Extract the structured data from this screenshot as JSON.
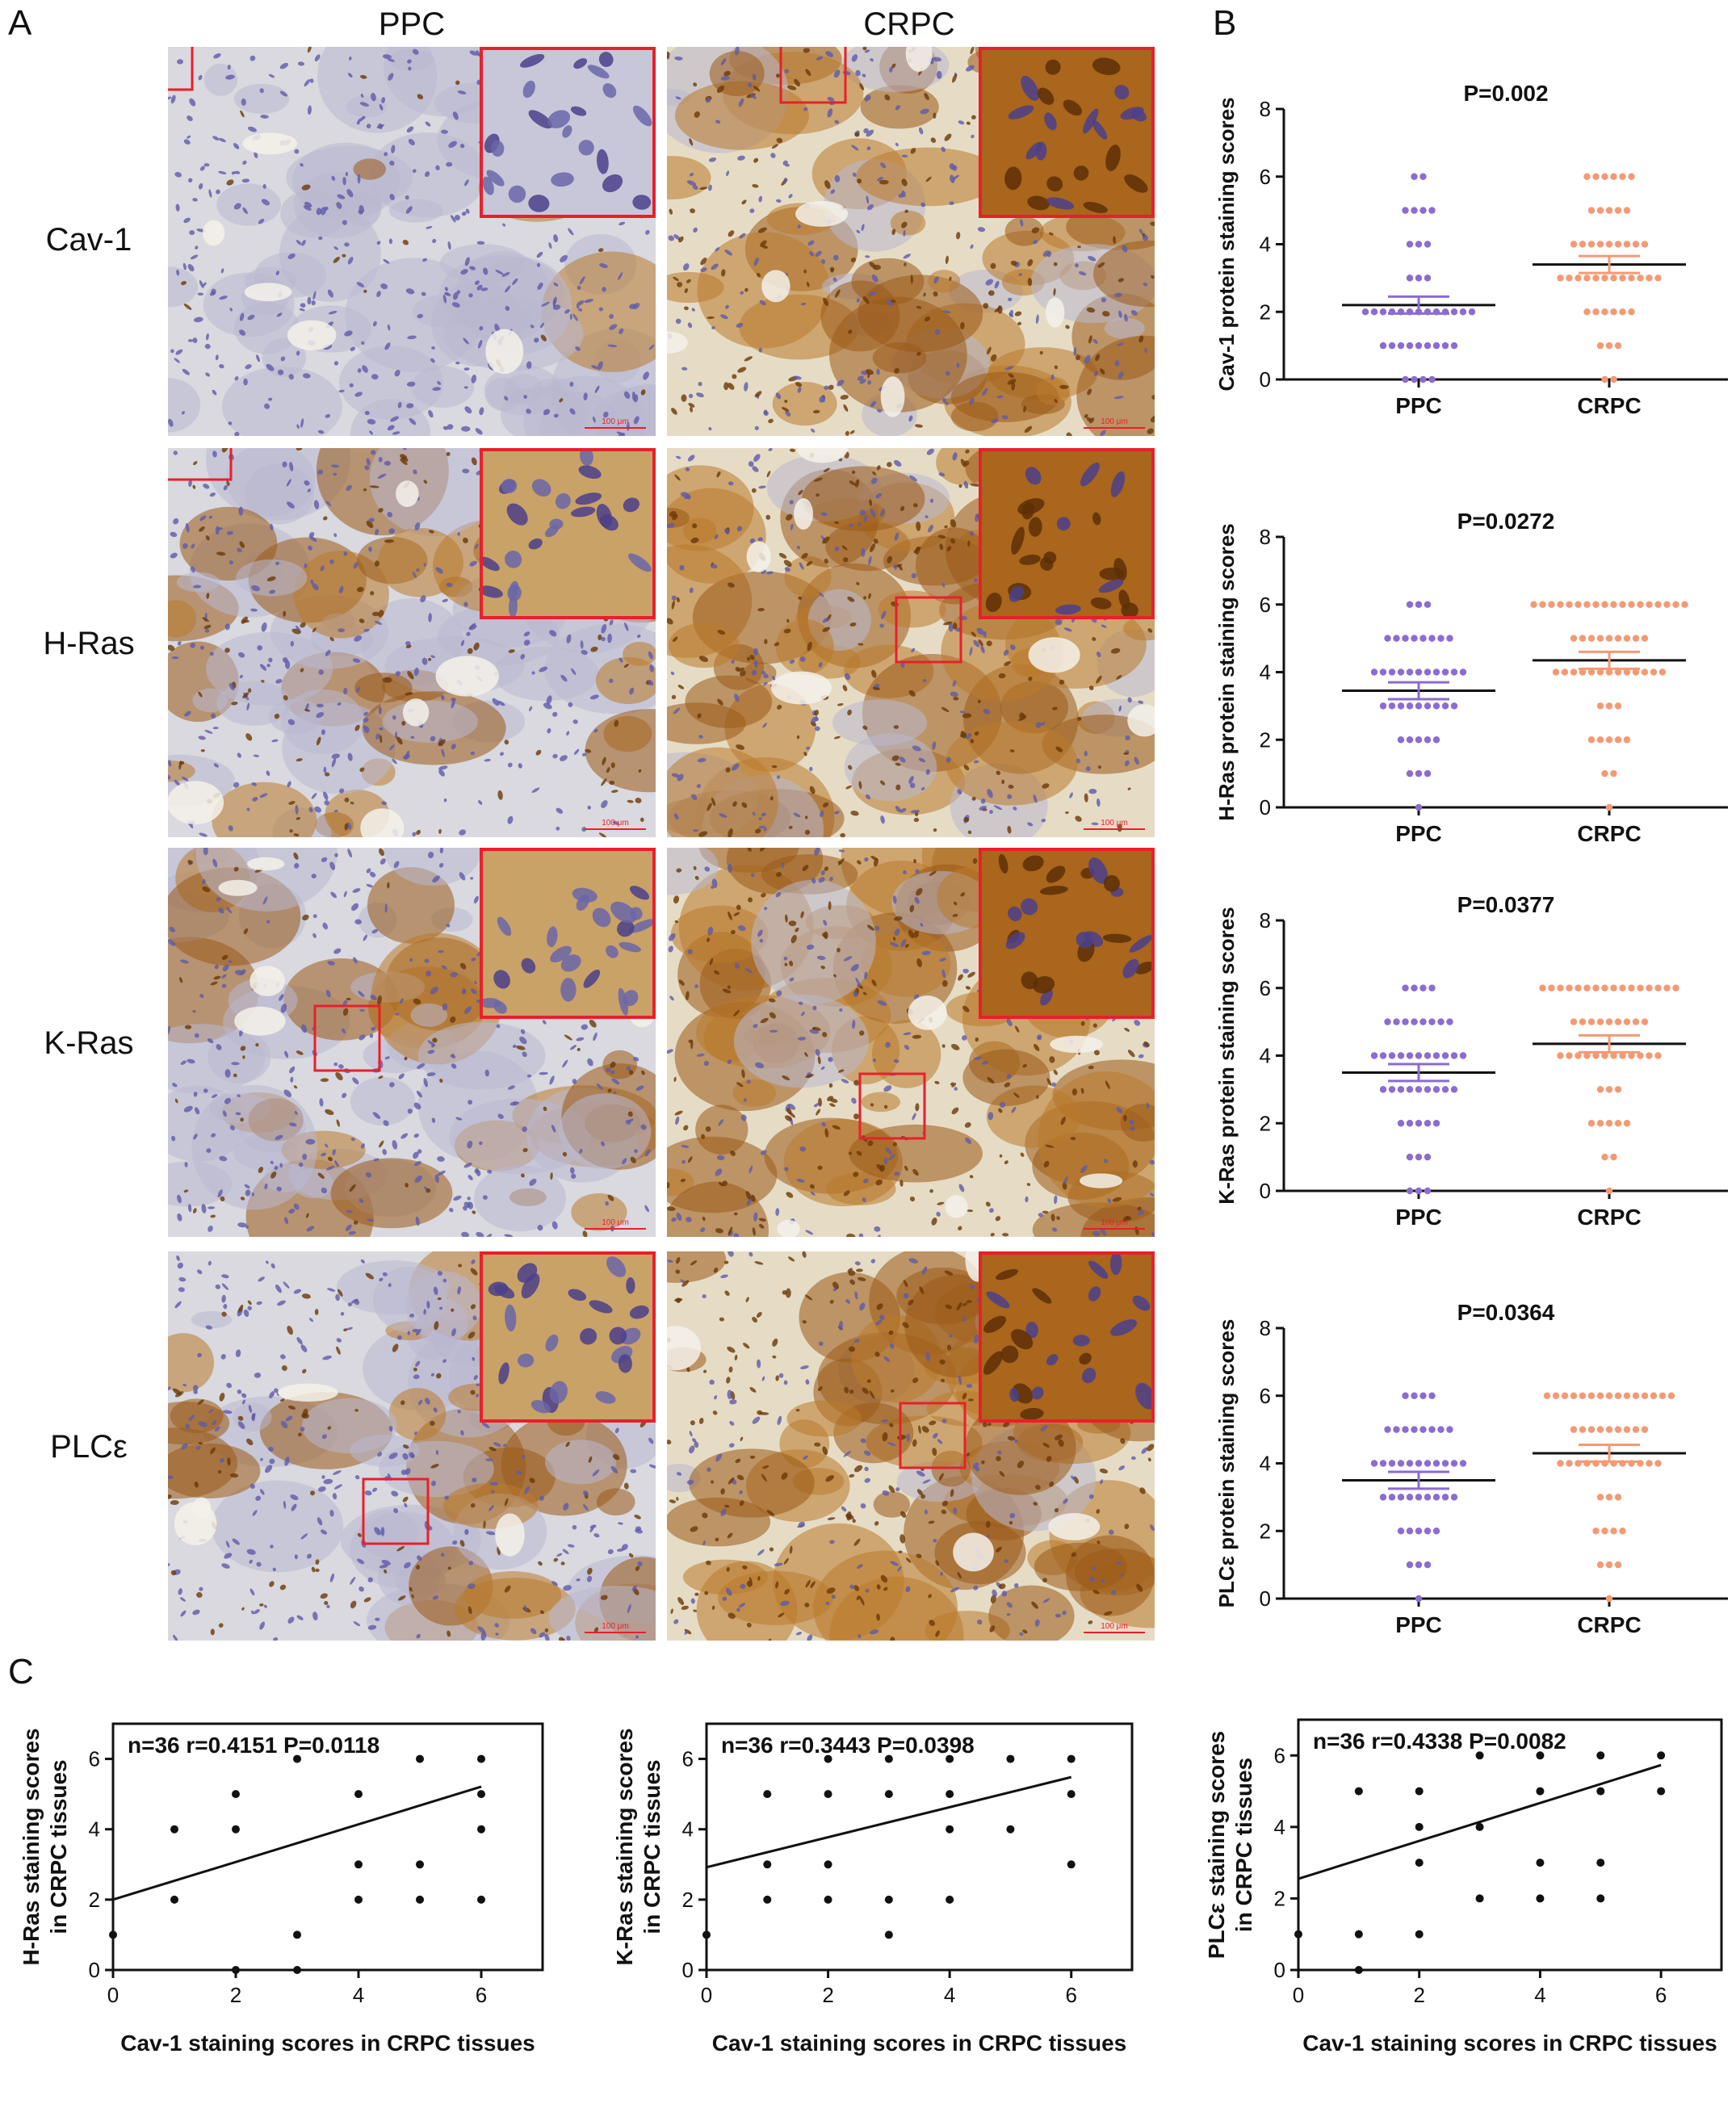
{
  "panel_labels": {
    "a": "A",
    "b": "B",
    "c": "C"
  },
  "columns": {
    "ppc": "PPC",
    "crpc": "CRPC"
  },
  "rows": [
    "Cav-1",
    "H-Ras",
    "K-Ras",
    "PLCε"
  ],
  "scale_bar": "100 μm",
  "colors": {
    "ppc": "#8c6bd2",
    "crpc": "#f39a74",
    "box": "#e8202a",
    "brown": "#8a4e12",
    "hema": "#5f5aa8"
  },
  "chart_data": [
    {
      "type": "scatter",
      "id": "b-cav1",
      "title": "P=0.002",
      "ylabel": "Cav-1 protein staining scores",
      "categories": [
        "PPC",
        "CRPC"
      ],
      "ylim": [
        0,
        8
      ],
      "yticks": [
        0,
        2,
        4,
        6,
        8
      ],
      "series": [
        {
          "name": "PPC",
          "mean": 2.2,
          "sem": 0.25,
          "values": [
            0,
            0,
            0,
            0,
            1,
            1,
            1,
            1,
            1,
            1,
            1,
            1,
            1,
            2,
            2,
            2,
            2,
            2,
            2,
            2,
            2,
            2,
            2,
            2,
            2,
            2,
            3,
            3,
            3,
            4,
            4,
            4,
            5,
            5,
            5,
            5,
            6,
            6
          ]
        },
        {
          "name": "CRPC",
          "mean": 3.4,
          "sem": 0.25,
          "values": [
            0,
            0,
            1,
            1,
            1,
            2,
            2,
            2,
            2,
            2,
            2,
            3,
            3,
            3,
            3,
            3,
            3,
            3,
            3,
            3,
            3,
            3,
            3,
            4,
            4,
            4,
            4,
            4,
            4,
            4,
            4,
            4,
            5,
            5,
            5,
            5,
            5,
            6,
            6,
            6,
            6,
            6,
            6
          ]
        }
      ]
    },
    {
      "type": "scatter",
      "id": "b-hras",
      "title": "P=0.0272",
      "ylabel": "H-Ras protein staining scores",
      "categories": [
        "PPC",
        "CRPC"
      ],
      "ylim": [
        0,
        8
      ],
      "yticks": [
        0,
        2,
        4,
        6,
        8
      ],
      "series": [
        {
          "name": "PPC",
          "mean": 3.45,
          "sem": 0.25,
          "values": [
            0,
            1,
            1,
            1,
            2,
            2,
            2,
            2,
            2,
            3,
            3,
            3,
            3,
            3,
            3,
            3,
            3,
            3,
            4,
            4,
            4,
            4,
            4,
            4,
            4,
            4,
            4,
            4,
            4,
            5,
            5,
            5,
            5,
            5,
            5,
            5,
            5,
            6,
            6,
            6
          ]
        },
        {
          "name": "CRPC",
          "mean": 4.35,
          "sem": 0.25,
          "values": [
            0,
            1,
            1,
            2,
            2,
            2,
            2,
            2,
            3,
            3,
            3,
            4,
            4,
            4,
            4,
            4,
            4,
            4,
            4,
            4,
            4,
            4,
            4,
            4,
            5,
            5,
            5,
            5,
            5,
            5,
            5,
            5,
            5,
            6,
            6,
            6,
            6,
            6,
            6,
            6,
            6,
            6,
            6,
            6,
            6,
            6,
            6,
            6,
            6,
            6,
            6
          ]
        }
      ]
    },
    {
      "type": "scatter",
      "id": "b-kras",
      "title": "P=0.0377",
      "ylabel": "K-Ras protein staining scores",
      "categories": [
        "PPC",
        "CRPC"
      ],
      "ylim": [
        0,
        8
      ],
      "yticks": [
        0,
        2,
        4,
        6,
        8
      ],
      "series": [
        {
          "name": "PPC",
          "mean": 3.5,
          "sem": 0.25,
          "values": [
            0,
            0,
            0,
            1,
            1,
            1,
            2,
            2,
            2,
            2,
            2,
            3,
            3,
            3,
            3,
            3,
            3,
            3,
            3,
            3,
            4,
            4,
            4,
            4,
            4,
            4,
            4,
            4,
            4,
            4,
            4,
            5,
            5,
            5,
            5,
            5,
            5,
            5,
            5,
            6,
            6,
            6,
            6
          ]
        },
        {
          "name": "CRPC",
          "mean": 4.35,
          "sem": 0.25,
          "values": [
            0,
            1,
            1,
            2,
            2,
            2,
            2,
            2,
            3,
            3,
            3,
            4,
            4,
            4,
            4,
            4,
            4,
            4,
            4,
            4,
            4,
            4,
            4,
            5,
            5,
            5,
            5,
            5,
            5,
            5,
            5,
            5,
            6,
            6,
            6,
            6,
            6,
            6,
            6,
            6,
            6,
            6,
            6,
            6,
            6,
            6,
            6,
            6
          ]
        }
      ]
    },
    {
      "type": "scatter",
      "id": "b-plce",
      "title": "P=0.0364",
      "ylabel": "PLCε protein staining scores",
      "categories": [
        "PPC",
        "CRPC"
      ],
      "ylim": [
        0,
        8
      ],
      "yticks": [
        0,
        2,
        4,
        6,
        8
      ],
      "series": [
        {
          "name": "PPC",
          "mean": 3.5,
          "sem": 0.25,
          "values": [
            0,
            1,
            1,
            1,
            2,
            2,
            2,
            2,
            2,
            3,
            3,
            3,
            3,
            3,
            3,
            3,
            3,
            3,
            4,
            4,
            4,
            4,
            4,
            4,
            4,
            4,
            4,
            4,
            4,
            5,
            5,
            5,
            5,
            5,
            5,
            5,
            5,
            6,
            6,
            6,
            6
          ]
        },
        {
          "name": "CRPC",
          "mean": 4.3,
          "sem": 0.25,
          "values": [
            0,
            1,
            1,
            1,
            2,
            2,
            2,
            2,
            3,
            3,
            3,
            4,
            4,
            4,
            4,
            4,
            4,
            4,
            4,
            4,
            4,
            4,
            4,
            5,
            5,
            5,
            5,
            5,
            5,
            5,
            5,
            5,
            6,
            6,
            6,
            6,
            6,
            6,
            6,
            6,
            6,
            6,
            6,
            6,
            6,
            6,
            6
          ]
        }
      ]
    },
    {
      "type": "scatter",
      "id": "c-hras",
      "annotation": "n=36  r=0.4151  P=0.0118",
      "xlabel": "Cav-1 staining scores in CRPC tissues",
      "ylabel": [
        "H-Ras  staining scores",
        "in CRPC tissues"
      ],
      "xlim": [
        0,
        7
      ],
      "ylim": [
        0,
        7
      ],
      "xticks": [
        0,
        2,
        4,
        6
      ],
      "yticks": [
        0,
        2,
        4,
        6
      ],
      "points": [
        [
          0,
          1
        ],
        [
          1,
          4
        ],
        [
          1,
          2
        ],
        [
          2,
          5
        ],
        [
          2,
          4
        ],
        [
          2,
          0
        ],
        [
          3,
          6
        ],
        [
          3,
          1
        ],
        [
          3,
          0
        ],
        [
          4,
          5
        ],
        [
          4,
          3
        ],
        [
          4,
          2
        ],
        [
          5,
          6
        ],
        [
          5,
          3
        ],
        [
          5,
          2
        ],
        [
          6,
          6
        ],
        [
          6,
          5
        ],
        [
          6,
          4
        ],
        [
          6,
          2
        ]
      ],
      "fit": {
        "intercept": 2.0,
        "slope": 0.535,
        "x_end": 6
      }
    },
    {
      "type": "scatter",
      "id": "c-kras",
      "annotation": "n=36  r=0.3443  P=0.0398",
      "xlabel": "Cav-1 staining scores in CRPC tissues",
      "ylabel": [
        "K-Ras  staining scores",
        "in CRPC tissues"
      ],
      "xlim": [
        0,
        7
      ],
      "ylim": [
        0,
        7
      ],
      "xticks": [
        0,
        2,
        4,
        6
      ],
      "yticks": [
        0,
        2,
        4,
        6
      ],
      "points": [
        [
          0,
          1
        ],
        [
          1,
          5
        ],
        [
          1,
          3
        ],
        [
          1,
          2
        ],
        [
          2,
          6
        ],
        [
          2,
          5
        ],
        [
          2,
          3
        ],
        [
          2,
          2
        ],
        [
          3,
          6
        ],
        [
          3,
          5
        ],
        [
          3,
          2
        ],
        [
          3,
          1
        ],
        [
          4,
          6
        ],
        [
          4,
          5
        ],
        [
          4,
          4
        ],
        [
          4,
          2
        ],
        [
          5,
          6
        ],
        [
          5,
          4
        ],
        [
          6,
          6
        ],
        [
          6,
          5
        ],
        [
          6,
          3
        ]
      ],
      "fit": {
        "intercept": 2.92,
        "slope": 0.427,
        "x_end": 6
      }
    },
    {
      "type": "scatter",
      "id": "c-plce",
      "annotation": "n=36  r=0.4338  P=0.0082",
      "xlabel": "Cav-1 staining scores in CRPC tissues",
      "ylabel": [
        "PLCε  staining scores",
        "in CRPC tissues"
      ],
      "xlim": [
        0,
        7
      ],
      "ylim": [
        0,
        7
      ],
      "xticks": [
        0,
        2,
        4,
        6
      ],
      "yticks": [
        0,
        2,
        4,
        6
      ],
      "points": [
        [
          0,
          1
        ],
        [
          1,
          5
        ],
        [
          1,
          1
        ],
        [
          1,
          0
        ],
        [
          2,
          5
        ],
        [
          2,
          4
        ],
        [
          2,
          3
        ],
        [
          2,
          1
        ],
        [
          3,
          6
        ],
        [
          3,
          4
        ],
        [
          3,
          2
        ],
        [
          4,
          6
        ],
        [
          4,
          5
        ],
        [
          4,
          3
        ],
        [
          4,
          2
        ],
        [
          5,
          6
        ],
        [
          5,
          5
        ],
        [
          5,
          3
        ],
        [
          5,
          2
        ],
        [
          6,
          6
        ],
        [
          6,
          5
        ]
      ],
      "fit": {
        "intercept": 2.55,
        "slope": 0.53,
        "x_end": 6
      }
    }
  ]
}
